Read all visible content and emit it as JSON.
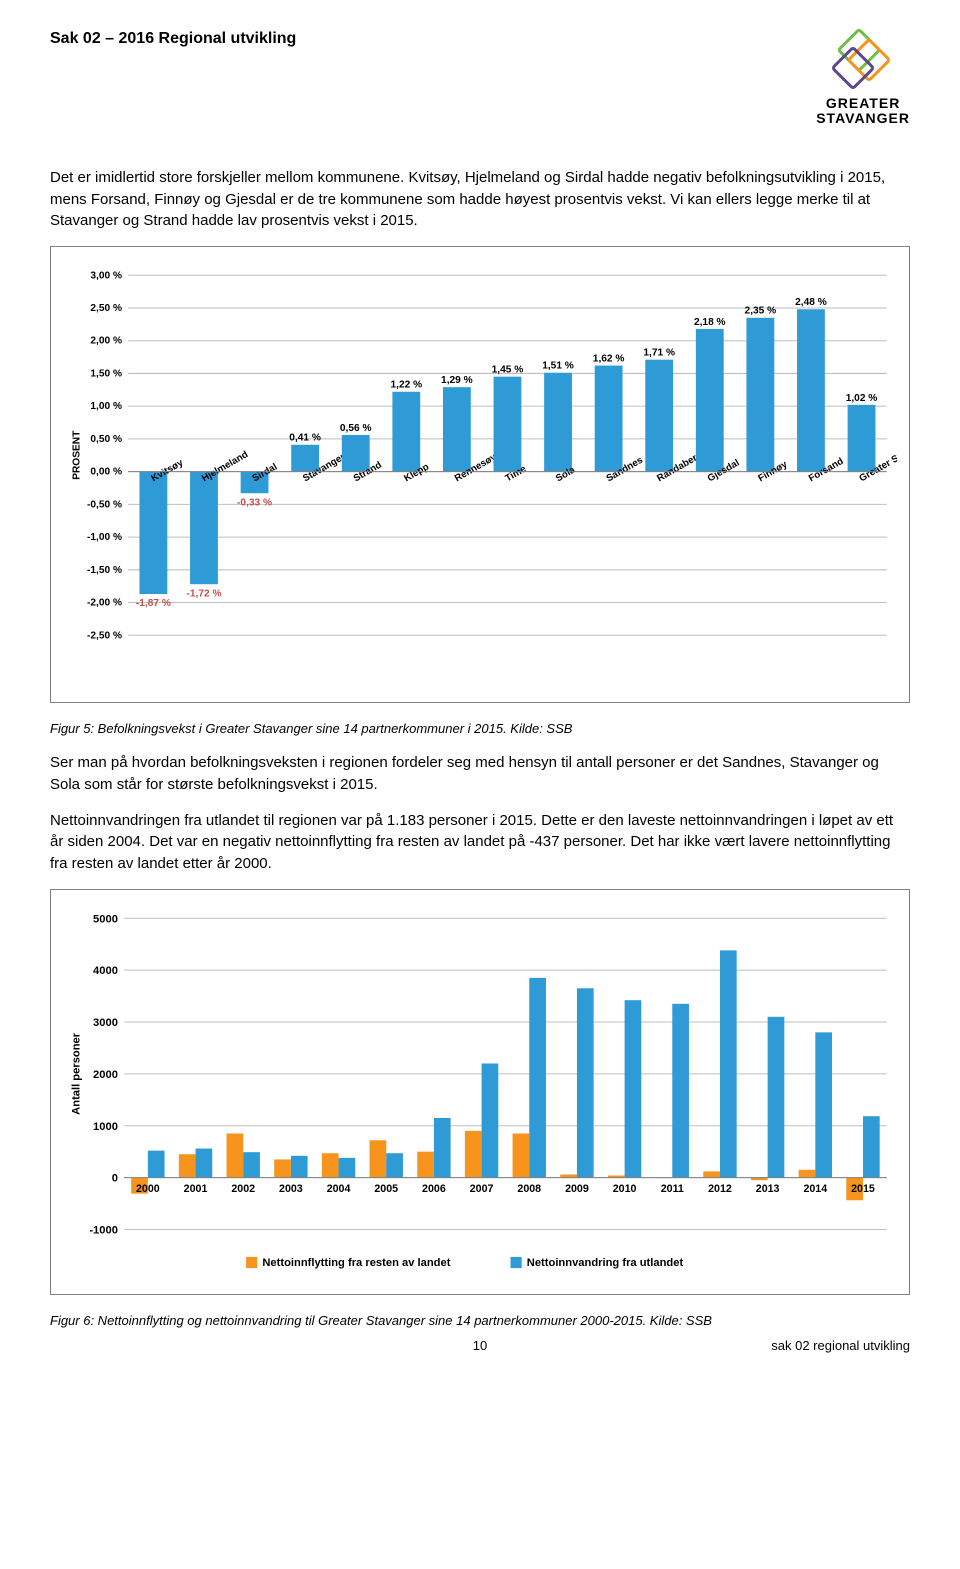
{
  "header": {
    "doc_title": "Sak 02 – 2016 Regional utvikling",
    "logo_line1": "GREATER",
    "logo_line2": "STAVANGER"
  },
  "para1": "Det er imidlertid store forskjeller mellom kommunene. Kvitsøy, Hjelmeland og Sirdal hadde negativ befolkningsutvikling i 2015, mens Forsand, Finnøy og Gjesdal er de tre kommunene som hadde høyest prosentvis vekst. Vi kan ellers legge merke til at Stavanger og Strand hadde lav prosentvis vekst i 2015.",
  "chart1": {
    "type": "bar",
    "y_label": "PROSENT",
    "y_min": -2.5,
    "y_max": 3.0,
    "y_step": 0.5,
    "y_ticks": [
      "3,00 %",
      "2,50 %",
      "2,00 %",
      "1,50 %",
      "1,00 %",
      "0,50 %",
      "0,00 %",
      "-0,50 %",
      "-1,00 %",
      "-1,50 %",
      "-2,00 %",
      "-2,50 %"
    ],
    "bar_color": "#2e9bd6",
    "neg_label_color": "#c0504d",
    "pos_label_color": "#000000",
    "grid_color": "#bfbfbf",
    "axis_color": "#808080",
    "label_fontsize": 10,
    "tick_fontsize": 10,
    "cat_fontsize": 9.5,
    "bars": [
      {
        "cat": "Kvitsøy",
        "val": -1.87,
        "lbl": "-1,87 %"
      },
      {
        "cat": "Hjelmeland",
        "val": -1.72,
        "lbl": "-1,72 %"
      },
      {
        "cat": "Sirdal",
        "val": -0.33,
        "lbl": "-0,33 %"
      },
      {
        "cat": "Stavanger",
        "val": 0.41,
        "lbl": "0,41 %"
      },
      {
        "cat": "Strand",
        "val": 0.56,
        "lbl": "0,56 %"
      },
      {
        "cat": "Klepp",
        "val": 1.22,
        "lbl": "1,22 %"
      },
      {
        "cat": "Rennesøy",
        "val": 1.29,
        "lbl": "1,29 %"
      },
      {
        "cat": "Time",
        "val": 1.45,
        "lbl": "1,45 %"
      },
      {
        "cat": "Sola",
        "val": 1.51,
        "lbl": "1,51 %"
      },
      {
        "cat": "Sandnes",
        "val": 1.62,
        "lbl": "1,62 %"
      },
      {
        "cat": "Randaberg",
        "val": 1.71,
        "lbl": "1,71 %"
      },
      {
        "cat": "Gjesdal",
        "val": 2.18,
        "lbl": "2,18 %"
      },
      {
        "cat": "Finnøy",
        "val": 2.35,
        "lbl": "2,35 %"
      },
      {
        "cat": "Forsand",
        "val": 2.48,
        "lbl": "2,48 %"
      },
      {
        "cat": "Greater Stavanger",
        "val": 1.02,
        "lbl": "1,02 %"
      }
    ]
  },
  "caption1": "Figur 5: Befolkningsvekst i Greater Stavanger sine 14 partnerkommuner i 2015. Kilde: SSB",
  "para2": "Ser man på hvordan befolkningsveksten i regionen fordeler seg med hensyn til antall personer er det Sandnes, Stavanger og Sola som står for største befolkningsvekst i 2015.",
  "para3": "Nettoinnvandringen fra utlandet til regionen var på 1.183 personer i 2015. Dette er den laveste nettoinnvandringen i løpet av ett år siden 2004. Det var en negativ nettoinnflytting fra resten av landet på -437 personer. Det har ikke vært lavere nettoinnflytting fra resten av landet etter år 2000.",
  "chart2": {
    "type": "grouped-bar",
    "y_label": "Antall personer",
    "y_min": -1000,
    "y_max": 5000,
    "y_step": 1000,
    "y_ticks": [
      "5000",
      "4000",
      "3000",
      "2000",
      "1000",
      "0",
      "-1000"
    ],
    "grid_color": "#bfbfbf",
    "axis_color": "#808080",
    "series": [
      {
        "name": "Nettoinnflytting fra resten av landet",
        "color": "#f7941d"
      },
      {
        "name": "Nettoinnvandring fra utlandet",
        "color": "#2e9bd6"
      }
    ],
    "categories": [
      "2000",
      "2001",
      "2002",
      "2003",
      "2004",
      "2005",
      "2006",
      "2007",
      "2008",
      "2009",
      "2010",
      "2011",
      "2012",
      "2013",
      "2014",
      "2015"
    ],
    "data": {
      "orange": [
        -310,
        450,
        850,
        350,
        470,
        720,
        500,
        900,
        850,
        60,
        40,
        -10,
        120,
        -50,
        150,
        -437
      ],
      "blue": [
        520,
        560,
        490,
        420,
        380,
        470,
        1150,
        2200,
        3850,
        3650,
        3420,
        3350,
        4380,
        3100,
        2800,
        1183
      ]
    }
  },
  "caption2": "Figur 6: Nettoinnflytting og nettoinnvandring til Greater Stavanger sine 14 partnerkommuner 2000-2015. Kilde: SSB",
  "footer": {
    "page": "10",
    "right": "sak 02 regional utvikling"
  }
}
